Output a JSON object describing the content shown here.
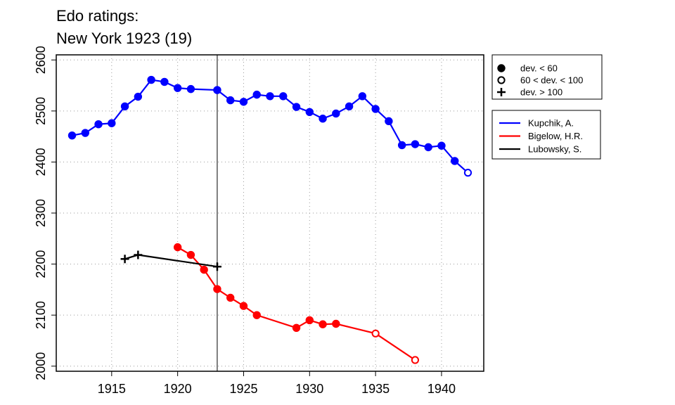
{
  "chart_data": {
    "type": "line",
    "title_line1": "Edo ratings:",
    "title_line2": "New York 1923 (19)",
    "xlabel": "",
    "ylabel": "",
    "xlim": [
      1910.8,
      1943.2
    ],
    "ylim": [
      1990,
      2610
    ],
    "x_ticks": [
      1915,
      1920,
      1925,
      1930,
      1935,
      1940
    ],
    "y_ticks": [
      2000,
      2100,
      2200,
      2300,
      2400,
      2500,
      2600
    ],
    "grid": "dotted",
    "event_year": 1923,
    "marker_legend": [
      {
        "symbol": "filled",
        "label": "dev. < 60"
      },
      {
        "symbol": "open",
        "label": "60 < dev. < 100"
      },
      {
        "symbol": "plus",
        "label": "dev. > 100"
      }
    ],
    "series": [
      {
        "name": "Kupchik, A.",
        "color": "#0000ff",
        "points": [
          {
            "x": 1912,
            "y": 2452,
            "m": "filled"
          },
          {
            "x": 1913,
            "y": 2457,
            "m": "filled"
          },
          {
            "x": 1914,
            "y": 2474,
            "m": "filled"
          },
          {
            "x": 1915,
            "y": 2476,
            "m": "filled"
          },
          {
            "x": 1916,
            "y": 2509,
            "m": "filled"
          },
          {
            "x": 1917,
            "y": 2528,
            "m": "filled"
          },
          {
            "x": 1918,
            "y": 2561,
            "m": "filled"
          },
          {
            "x": 1919,
            "y": 2557,
            "m": "filled"
          },
          {
            "x": 1920,
            "y": 2545,
            "m": "filled"
          },
          {
            "x": 1921,
            "y": 2543,
            "m": "filled"
          },
          {
            "x": 1923,
            "y": 2541,
            "m": "filled"
          },
          {
            "x": 1924,
            "y": 2521,
            "m": "filled"
          },
          {
            "x": 1925,
            "y": 2518,
            "m": "filled"
          },
          {
            "x": 1926,
            "y": 2532,
            "m": "filled"
          },
          {
            "x": 1927,
            "y": 2529,
            "m": "filled"
          },
          {
            "x": 1928,
            "y": 2529,
            "m": "filled"
          },
          {
            "x": 1929,
            "y": 2508,
            "m": "filled"
          },
          {
            "x": 1930,
            "y": 2498,
            "m": "filled"
          },
          {
            "x": 1931,
            "y": 2485,
            "m": "filled"
          },
          {
            "x": 1932,
            "y": 2495,
            "m": "filled"
          },
          {
            "x": 1933,
            "y": 2509,
            "m": "filled"
          },
          {
            "x": 1934,
            "y": 2529,
            "m": "filled"
          },
          {
            "x": 1935,
            "y": 2504,
            "m": "filled"
          },
          {
            "x": 1936,
            "y": 2480,
            "m": "filled"
          },
          {
            "x": 1937,
            "y": 2433,
            "m": "filled"
          },
          {
            "x": 1938,
            "y": 2435,
            "m": "filled"
          },
          {
            "x": 1939,
            "y": 2429,
            "m": "filled"
          },
          {
            "x": 1940,
            "y": 2432,
            "m": "filled"
          },
          {
            "x": 1941,
            "y": 2402,
            "m": "filled"
          },
          {
            "x": 1942,
            "y": 2379,
            "m": "open"
          }
        ]
      },
      {
        "name": "Bigelow, H.R.",
        "color": "#ff0000",
        "points": [
          {
            "x": 1920,
            "y": 2233,
            "m": "filled"
          },
          {
            "x": 1921,
            "y": 2218,
            "m": "filled"
          },
          {
            "x": 1922,
            "y": 2189,
            "m": "filled"
          },
          {
            "x": 1923,
            "y": 2151,
            "m": "filled"
          },
          {
            "x": 1924,
            "y": 2134,
            "m": "filled"
          },
          {
            "x": 1925,
            "y": 2118,
            "m": "filled"
          },
          {
            "x": 1926,
            "y": 2100,
            "m": "filled"
          },
          {
            "x": 1929,
            "y": 2075,
            "m": "filled"
          },
          {
            "x": 1930,
            "y": 2090,
            "m": "filled"
          },
          {
            "x": 1931,
            "y": 2082,
            "m": "filled"
          },
          {
            "x": 1932,
            "y": 2083,
            "m": "filled"
          },
          {
            "x": 1935,
            "y": 2064,
            "m": "open"
          },
          {
            "x": 1938,
            "y": 2012,
            "m": "open"
          }
        ]
      },
      {
        "name": "Lubowsky, S.",
        "color": "#000000",
        "points": [
          {
            "x": 1916,
            "y": 2210,
            "m": "plus"
          },
          {
            "x": 1917,
            "y": 2218,
            "m": "plus"
          },
          {
            "x": 1923,
            "y": 2195,
            "m": "plus"
          }
        ]
      }
    ]
  }
}
